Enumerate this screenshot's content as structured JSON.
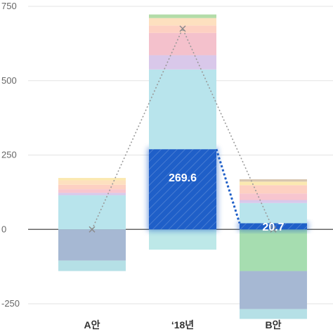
{
  "chart_data": {
    "type": "bar",
    "stacked": true,
    "categories": [
      "A안",
      "‘18년",
      "B안"
    ],
    "yticks": [
      750,
      500,
      250,
      0,
      -250
    ],
    "ylim": [
      -250,
      750
    ],
    "grid": true,
    "highlight_values": [
      "",
      "269.6",
      "20.7"
    ],
    "highlight_color": "#1f5fc8",
    "marker_line": [
      0,
      675,
      0
    ],
    "stacks": [
      [
        {
          "value": -105,
          "color": "#a6b8d3"
        },
        {
          "value": 0,
          "color": "#b8e4ec"
        },
        {
          "value": -35,
          "color": "#b5e0e6"
        },
        {
          "value": 115,
          "color": "#b8e4ec"
        },
        {
          "value": 8,
          "color": "#d9c8ea"
        },
        {
          "value": 12,
          "color": "#f7c5cf"
        },
        {
          "value": 15,
          "color": "#fdd0c2"
        },
        {
          "value": 15,
          "color": "#fde0bf"
        },
        {
          "value": 8,
          "color": "#fbe9b0"
        }
      ],
      [
        {
          "value": -68,
          "color": "#bde8e8"
        },
        {
          "value": 269.6,
          "color": "#1f5fc8"
        },
        {
          "value": 268,
          "color": "#b8e4ec"
        },
        {
          "value": 48,
          "color": "#d9c8ea"
        },
        {
          "value": 75,
          "color": "#f4c1cc"
        },
        {
          "value": 25,
          "color": "#fdd0c2"
        },
        {
          "value": 25,
          "color": "#fde0bf"
        },
        {
          "value": 12,
          "color": "#b3dca8"
        }
      ],
      [
        {
          "value": -140,
          "color": "#a6ddb0"
        },
        {
          "value": -128,
          "color": "#a6b8d3"
        },
        {
          "value": -33,
          "color": "#b5e0e6"
        },
        {
          "value": 20.7,
          "color": "#1f5fc8"
        },
        {
          "value": 68,
          "color": "#b8e4ec"
        },
        {
          "value": 10,
          "color": "#d9c8ea"
        },
        {
          "value": 22,
          "color": "#f7c5cf"
        },
        {
          "value": 28,
          "color": "#fdd0c2"
        },
        {
          "value": 12,
          "color": "#fbe9b0"
        },
        {
          "value": 8,
          "color": "#d8c6b0"
        }
      ]
    ]
  }
}
